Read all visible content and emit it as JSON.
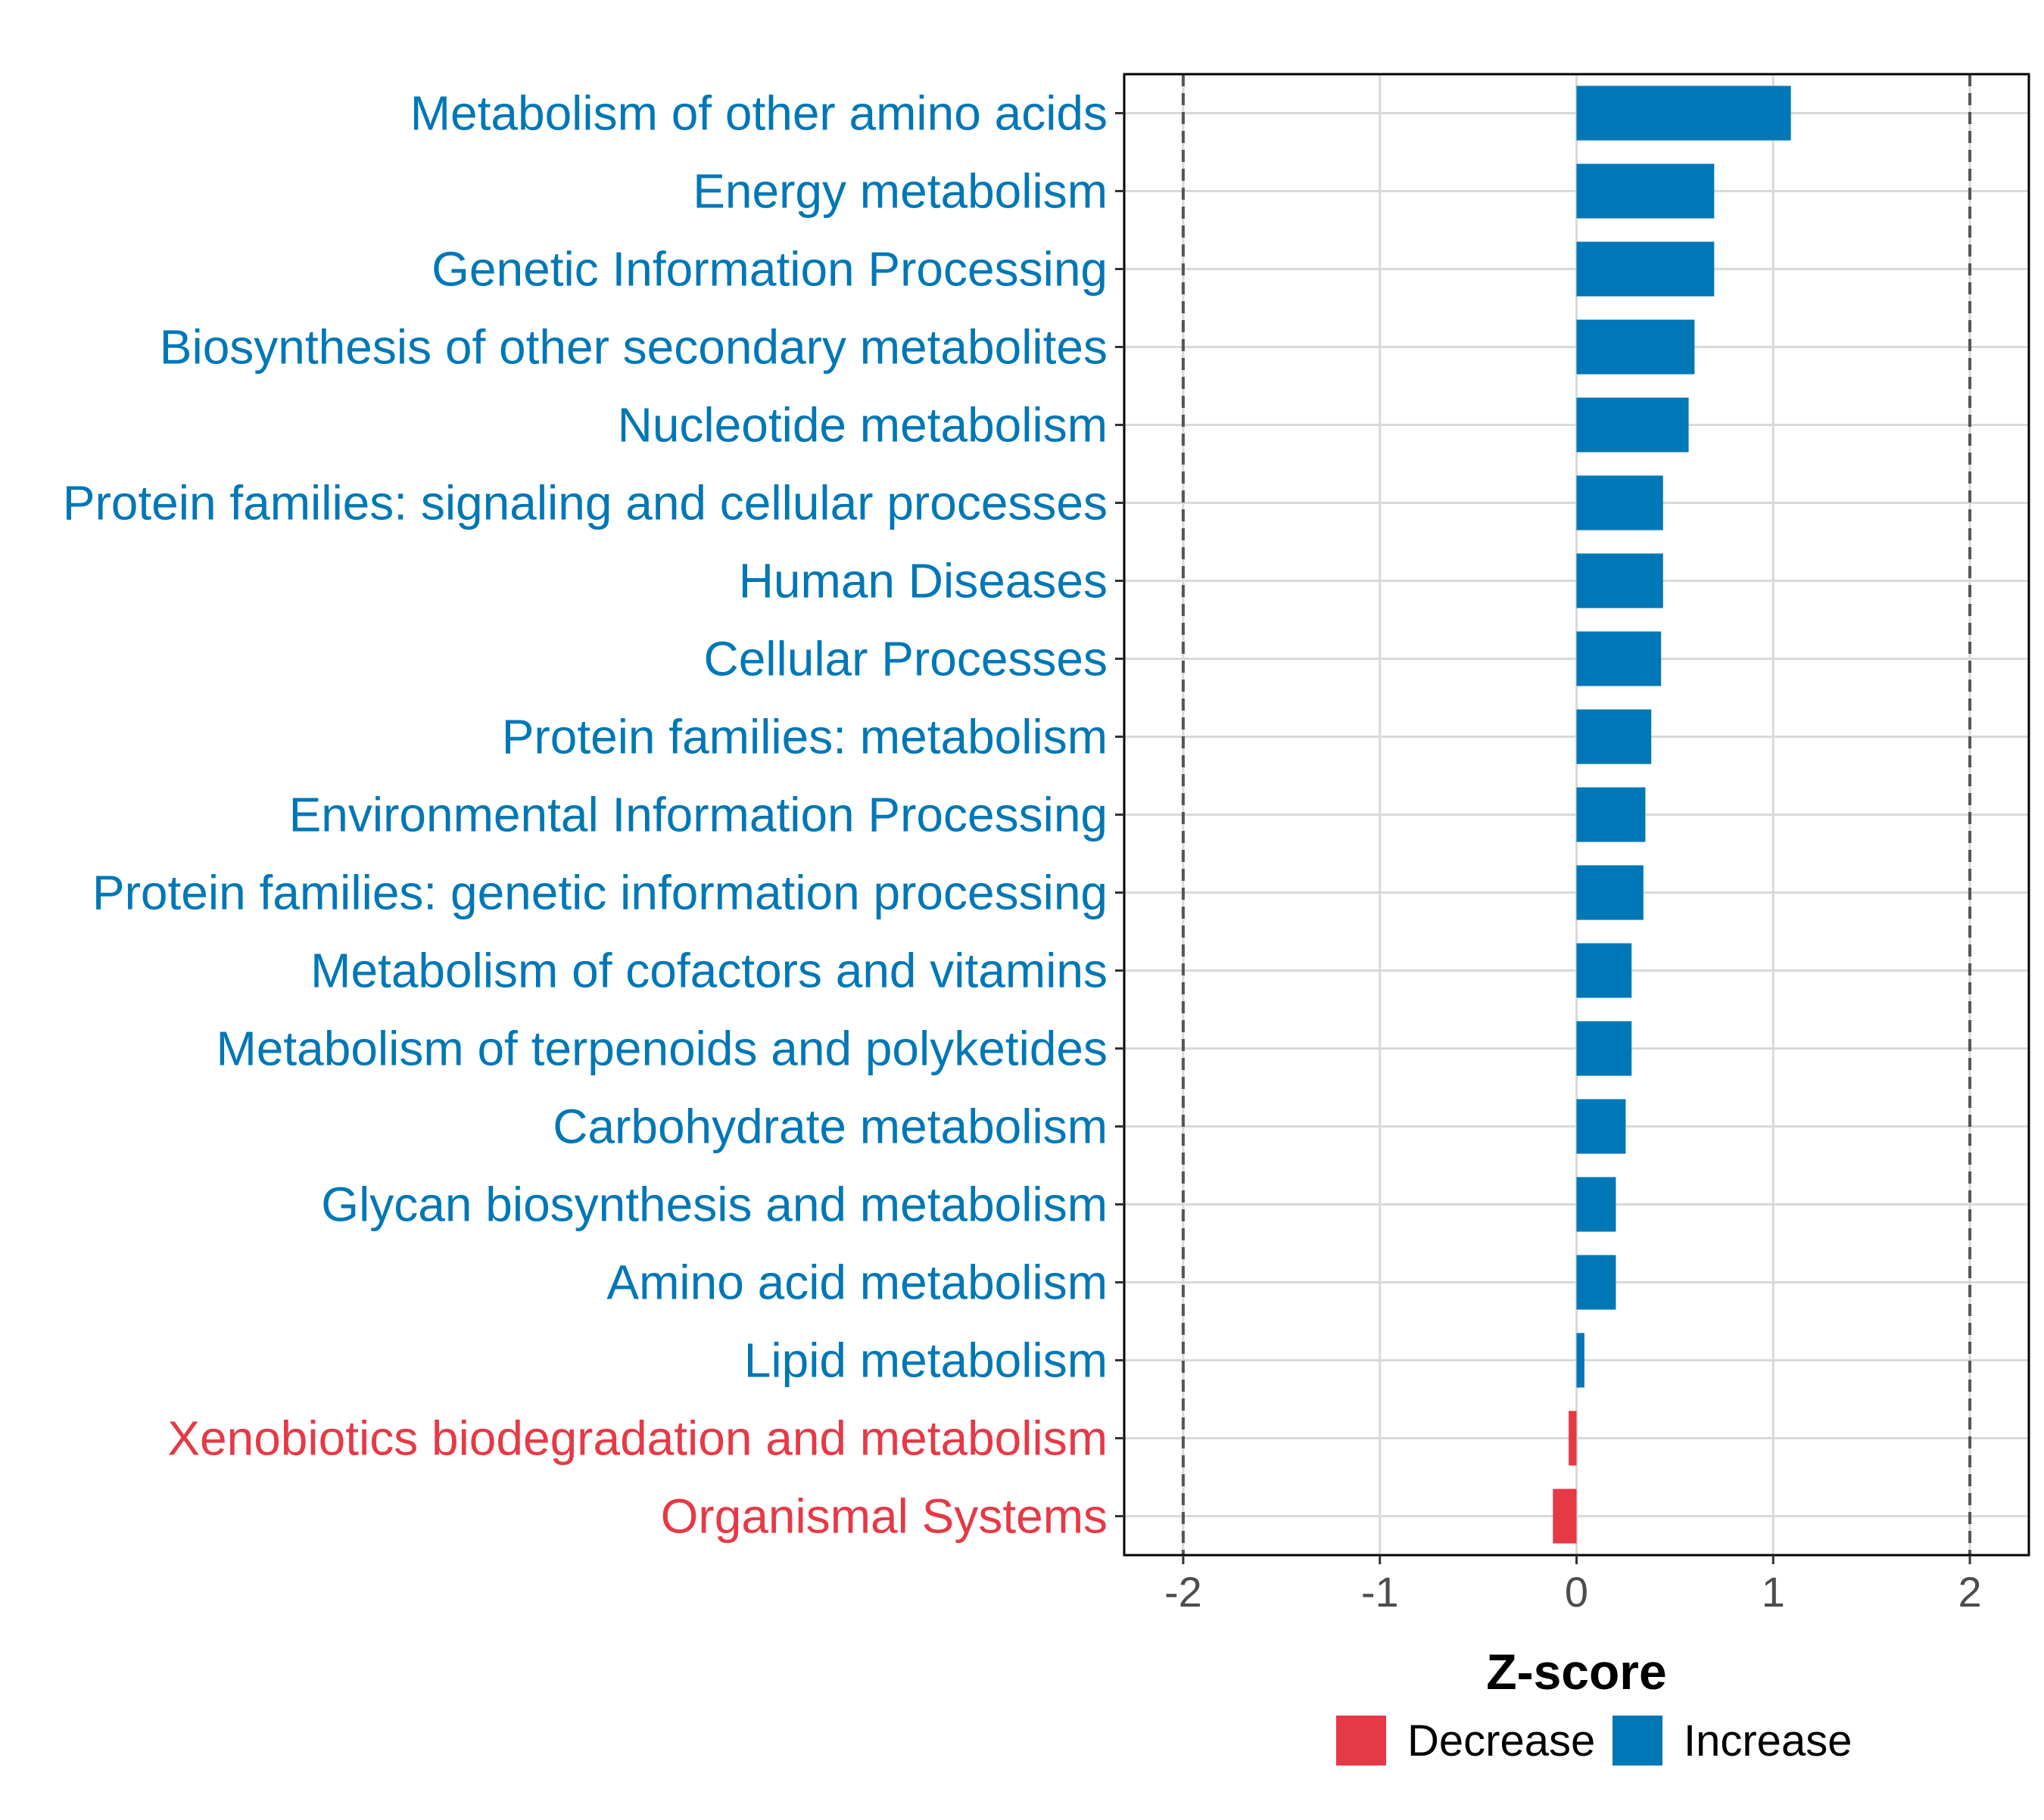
{
  "chart_data": {
    "type": "bar",
    "orientation": "horizontal",
    "title": "",
    "xlabel": "Z-score",
    "ylabel": "",
    "xlim": [
      -2.3,
      2.3
    ],
    "xticks": [
      -2,
      -1,
      0,
      1,
      2
    ],
    "xtick_labels": [
      "-2",
      "-1",
      "0",
      "1",
      "2"
    ],
    "reference_lines": [
      -2,
      2
    ],
    "grid": true,
    "colors": {
      "Decrease": "#e63946",
      "Increase": "#0077b6",
      "frame": "#000000",
      "grid": "#d9d9d9",
      "refline": "#555555"
    },
    "categories": [
      "Metabolism of other amino acids",
      "Energy metabolism",
      "Genetic Information Processing",
      "Biosynthesis of other secondary metabolites",
      "Nucleotide metabolism",
      "Protein families: signaling and cellular processes",
      "Human Diseases",
      "Cellular Processes",
      "Protein families: metabolism",
      "Environmental Information Processing",
      "Protein families: genetic information processing",
      "Metabolism of cofactors and vitamins",
      "Metabolism of terpenoids and polyketides",
      "Carbohydrate metabolism",
      "Glycan biosynthesis and metabolism",
      "Amino acid metabolism",
      "Lipid metabolism",
      "Xenobiotics biodegradation and metabolism",
      "Organismal Systems"
    ],
    "values": [
      1.09,
      0.7,
      0.7,
      0.6,
      0.57,
      0.44,
      0.44,
      0.43,
      0.38,
      0.35,
      0.34,
      0.28,
      0.28,
      0.25,
      0.2,
      0.2,
      0.04,
      -0.04,
      -0.12
    ],
    "groups": [
      "Increase",
      "Increase",
      "Increase",
      "Increase",
      "Increase",
      "Increase",
      "Increase",
      "Increase",
      "Increase",
      "Increase",
      "Increase",
      "Increase",
      "Increase",
      "Increase",
      "Increase",
      "Increase",
      "Increase",
      "Decrease",
      "Decrease"
    ],
    "legend": {
      "position": "bottom",
      "entries": [
        "Decrease",
        "Increase"
      ]
    }
  }
}
